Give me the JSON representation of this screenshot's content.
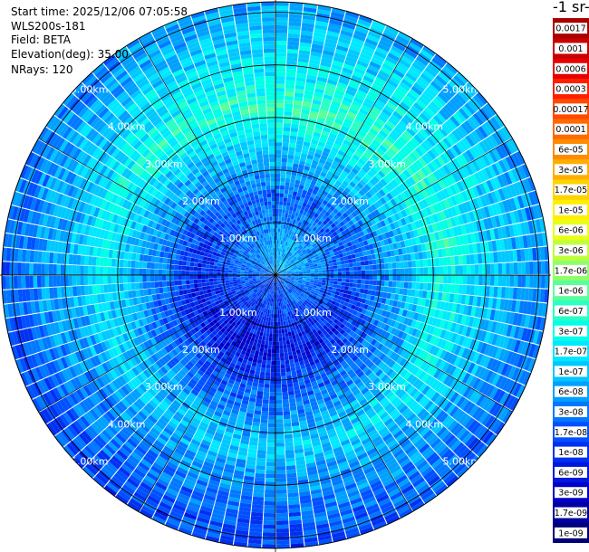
{
  "header": {
    "start_time": "Start time: 2025/12/06 07:05:58",
    "instrument": "WLS200s-181",
    "field": "Field: BETA",
    "elevation": "Elevation(deg): 35.00",
    "nrays": "NRays: 120"
  },
  "colorbar": {
    "unit_fragment": "-1 sr-",
    "ticks": [
      "0.0017",
      "0.001",
      "0.0006",
      "0.0003",
      "0.00017",
      "0.0001",
      "6e-05",
      "3e-05",
      "1.7e-05",
      "1e-05",
      "6e-06",
      "3e-06",
      "1.7e-06",
      "1e-06",
      "6e-07",
      "3e-07",
      "1.7e-07",
      "1e-07",
      "6e-08",
      "3e-08",
      "1.7e-08",
      "1e-08",
      "6e-09",
      "3e-09",
      "1.7e-09",
      "1e-09"
    ],
    "colors": [
      "#aa0000",
      "#c80000",
      "#e60000",
      "#ff1e00",
      "#ff4a00",
      "#ff6a00",
      "#ff8c00",
      "#ffae00",
      "#ffd200",
      "#fff000",
      "#e8ff1a",
      "#c0ff3c",
      "#8fff6a",
      "#5aff9a",
      "#2affc6",
      "#00ffe6",
      "#00e8ff",
      "#00c8ff",
      "#00a0ff",
      "#0078ff",
      "#0050ff",
      "#0030f0",
      "#0018dc",
      "#0000c8",
      "#0000a0",
      "#000078"
    ]
  },
  "chart_data": {
    "type": "heatmap",
    "projection": "polar PPI",
    "field": "BETA",
    "elevation_deg": 35.0,
    "n_rays": 120,
    "range_rings_km": [
      1,
      2,
      3,
      4,
      5
    ],
    "range_labels": [
      "1.00km",
      "2.00km",
      "3.00km",
      "4.00km",
      "5.00km"
    ],
    "max_range_km": 5.2,
    "color_scale": "log",
    "value_range": [
      1e-09,
      0.0017
    ],
    "radial_profile": [
      {
        "range_km": 0.2,
        "value": 3e-08
      },
      {
        "range_km": 0.6,
        "value": 3e-08
      },
      {
        "range_km": 1.0,
        "value": 1.7e-08
      },
      {
        "range_km": 1.5,
        "value": 1e-08
      },
      {
        "range_km": 2.0,
        "value": 3e-08
      },
      {
        "range_km": 2.5,
        "value": 6e-08
      },
      {
        "range_km": 3.0,
        "value": 1.7e-07
      },
      {
        "range_km": 3.3,
        "value": 2.5e-07
      },
      {
        "range_km": 3.8,
        "value": 1e-07
      },
      {
        "range_km": 4.5,
        "value": 6e-08
      },
      {
        "range_km": 5.0,
        "value": 3e-08
      }
    ]
  }
}
